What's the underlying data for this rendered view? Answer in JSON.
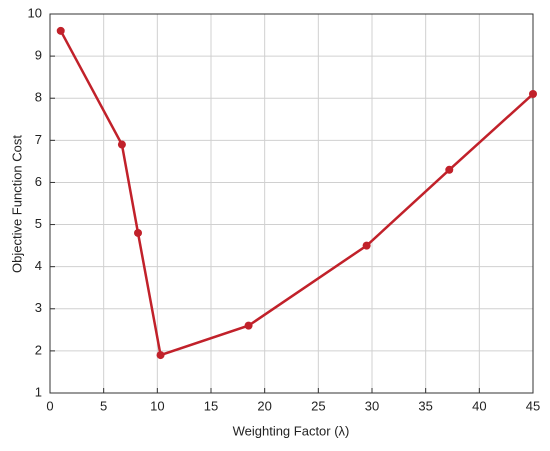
{
  "chart_data": {
    "type": "line",
    "x_label": "Weighting Factor (λ)",
    "y_label": "Objective Function Cost",
    "x": [
      1,
      6.7,
      8.2,
      10.3,
      18.5,
      29.5,
      37.2,
      45
    ],
    "series": [
      {
        "color": "#c1212a",
        "values": [
          9.6,
          6.9,
          4.8,
          1.9,
          2.6,
          4.5,
          6.3,
          8.1
        ]
      }
    ],
    "xlim": [
      0,
      45
    ],
    "xticks": [
      0,
      5,
      10,
      15,
      20,
      25,
      30,
      35,
      40,
      45
    ],
    "ylim": [
      1,
      10
    ],
    "yticks": [
      1,
      2,
      3,
      4,
      5,
      6,
      7,
      8,
      9,
      10
    ],
    "grid": true
  }
}
